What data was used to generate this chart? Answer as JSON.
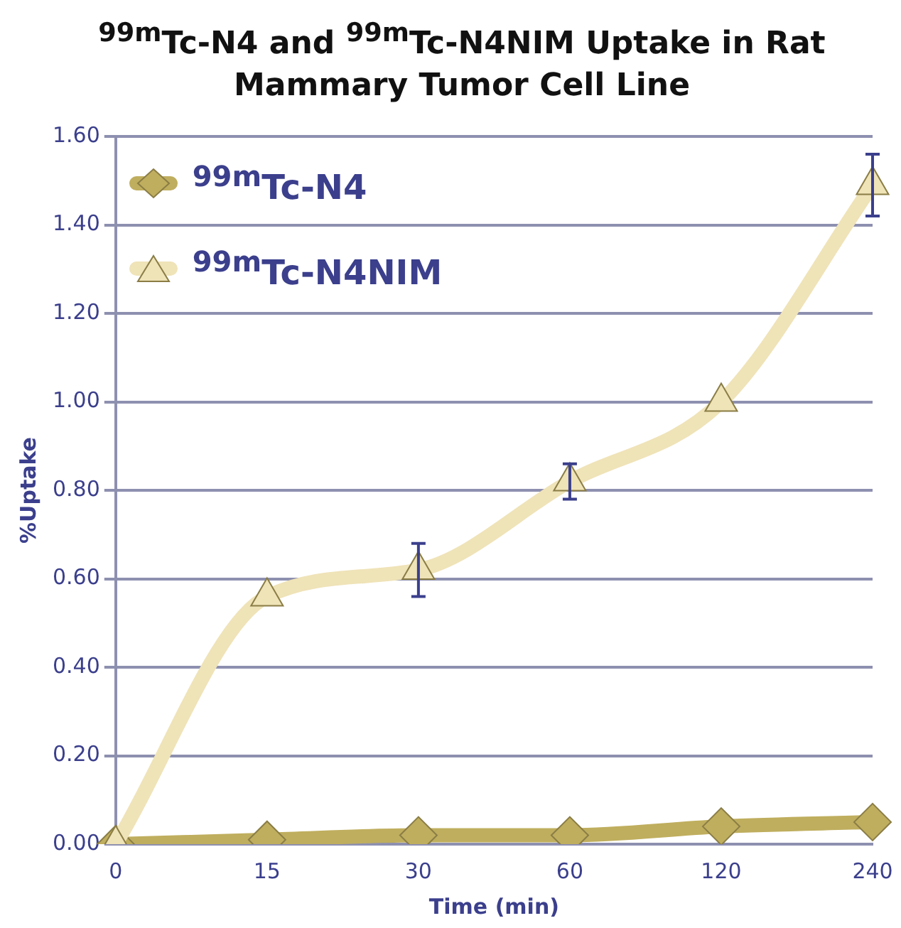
{
  "chart_data": {
    "type": "line",
    "title": "$^{99m}$Tc-N4 and $^{99m}$Tc-N4NIM Uptake in Rat Mammary Tumor Cell Line",
    "xlabel": "Time (min)",
    "ylabel": "%Uptake",
    "categories": [
      "0",
      "15",
      "30",
      "60",
      "120",
      "240"
    ],
    "series": [
      {
        "name": "$^{99m}$Tc-N4",
        "color": "#bfae5e",
        "marker": "diamond",
        "values": [
          0,
          0.01,
          0.02,
          0.02,
          0.04,
          0.05
        ]
      },
      {
        "name": "$^{99m}$Tc-N4NIM",
        "color": "#efe3b8",
        "marker": "triangle",
        "values": [
          0,
          0.56,
          0.62,
          0.82,
          1.0,
          1.49
        ],
        "errors": [
          null,
          null,
          0.06,
          0.04,
          null,
          0.07
        ]
      }
    ],
    "ylim": [
      0,
      1.6
    ],
    "yticks": [
      {
        "value": 0,
        "label": "0.00"
      },
      {
        "value": 0.2,
        "label": "0.20"
      },
      {
        "value": 0.4,
        "label": "0.40"
      },
      {
        "value": 0.6,
        "label": "0.60"
      },
      {
        "value": 0.8,
        "label": "0.80"
      },
      {
        "value": 1.0,
        "label": "1.00"
      },
      {
        "value": 1.2,
        "label": "1.20"
      },
      {
        "value": 1.4,
        "label": "1.40"
      },
      {
        "value": 1.6,
        "label": "1.60"
      }
    ],
    "grid": "y",
    "legend": "top left",
    "line_style": "solid"
  }
}
